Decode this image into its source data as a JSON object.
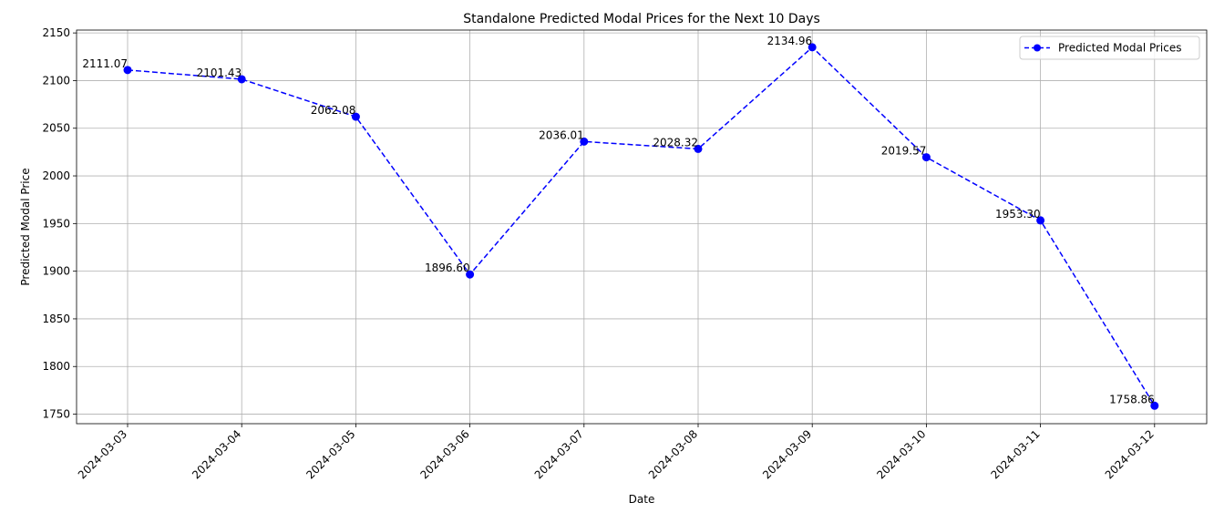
{
  "chart_data": {
    "type": "line",
    "title": "Standalone Predicted Modal Prices for the Next 10 Days",
    "xlabel": "Date",
    "ylabel": "Predicted Modal Price",
    "categories": [
      "2024-03-03",
      "2024-03-04",
      "2024-03-05",
      "2024-03-06",
      "2024-03-07",
      "2024-03-08",
      "2024-03-09",
      "2024-03-10",
      "2024-03-11",
      "2024-03-12"
    ],
    "series": [
      {
        "name": "Predicted Modal Prices",
        "values": [
          2111.07,
          2101.43,
          2062.08,
          1896.6,
          2036.01,
          2028.32,
          2134.96,
          2019.57,
          1953.3,
          1758.86
        ],
        "labels": [
          "2111.07",
          "2101.43",
          "2062.08",
          "1896.60",
          "2036.01",
          "2028.32",
          "2134.96",
          "2019.57",
          "1953.30",
          "1758.86"
        ],
        "color": "#0000ff",
        "line_style": "dashed",
        "marker": "circle"
      }
    ],
    "yticks": [
      1750,
      1800,
      1850,
      1900,
      1950,
      2000,
      2050,
      2100,
      2150
    ],
    "ylim": [
      1740,
      2153
    ],
    "grid": true,
    "legend_position": "top-right"
  }
}
